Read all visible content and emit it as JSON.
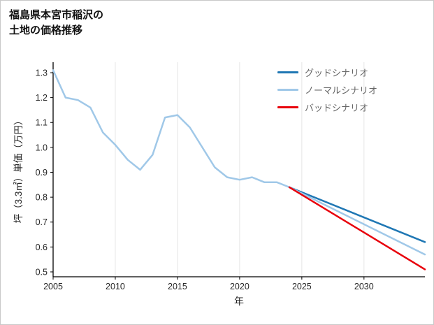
{
  "title": {
    "line1": "福島県本宮市稲沢の",
    "line2": "土地の価格推移"
  },
  "axes": {
    "x_label": "年",
    "y_label": "坪（3.3㎡）単価（万円）"
  },
  "legend": [
    {
      "label": "グッドシナリオ",
      "color": "#1f77b4"
    },
    {
      "label": "ノーマルシナリオ",
      "color": "#a0c8e8"
    },
    {
      "label": "バッドシナリオ",
      "color": "#e8000b"
    }
  ],
  "chart_data": {
    "type": "line",
    "title": "福島県本宮市稲沢の土地の価格推移",
    "xlabel": "年",
    "ylabel": "坪（3.3㎡）単価（万円）",
    "xlim": [
      2005,
      2034.9
    ],
    "ylim": [
      0.5,
      1.3
    ],
    "x_ticks": [
      2005,
      2010,
      2015,
      2020,
      2025,
      2030
    ],
    "y_ticks": [
      0.5,
      0.6,
      0.7,
      0.8,
      0.9,
      1.0,
      1.1,
      1.2,
      1.3
    ],
    "grid": "vertical",
    "legend_position": "top-right",
    "series": [
      {
        "id": "history",
        "name": "",
        "color": "#a0c8e8",
        "width": 2.5,
        "x": [
          2005,
          2006,
          2007,
          2008,
          2009,
          2010,
          2011,
          2012,
          2013,
          2014,
          2015,
          2016,
          2017,
          2018,
          2019,
          2020,
          2021,
          2022,
          2023,
          2024
        ],
        "y": [
          1.31,
          1.2,
          1.19,
          1.16,
          1.06,
          1.01,
          0.95,
          0.91,
          0.97,
          1.12,
          1.13,
          1.08,
          1.0,
          0.92,
          0.88,
          0.87,
          0.88,
          0.86,
          0.86,
          0.84
        ]
      },
      {
        "id": "good",
        "name": "グッドシナリオ",
        "color": "#1f77b4",
        "width": 2.5,
        "x": [
          2024,
          2034.9
        ],
        "y": [
          0.84,
          0.62
        ]
      },
      {
        "id": "normal",
        "name": "ノーマルシナリオ",
        "color": "#a0c8e8",
        "width": 2.5,
        "x": [
          2024,
          2034.9
        ],
        "y": [
          0.84,
          0.57
        ]
      },
      {
        "id": "bad",
        "name": "バッドシナリオ",
        "color": "#e8000b",
        "width": 2.5,
        "x": [
          2024,
          2034.9
        ],
        "y": [
          0.84,
          0.51
        ]
      }
    ]
  }
}
